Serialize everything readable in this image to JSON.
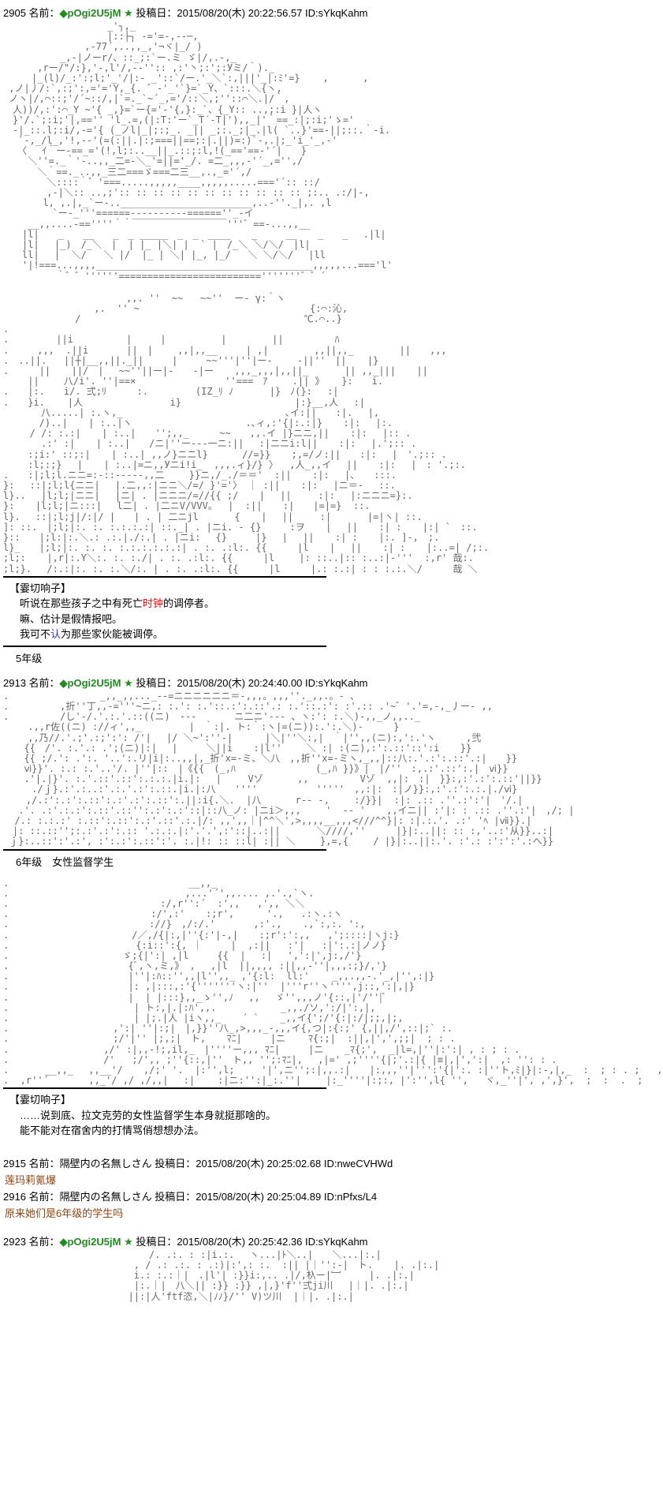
{
  "posts": [
    {
      "num": "2905",
      "nameLabel": "名前：",
      "trip": "◆pOgi2U5jM",
      "star": "★",
      "dateLabel": "投稿日：",
      "date": "2015/08/20(木) 20:22:56.57",
      "id": "ID:sYkqKahm"
    },
    {
      "num": "2913",
      "nameLabel": "名前：",
      "trip": "◆pOgi2U5jM",
      "star": "★",
      "dateLabel": "投稿日：",
      "date": "2015/08/20(木) 20:24:40.00",
      "id": "ID:sYkqKahm"
    },
    {
      "num": "2923",
      "nameLabel": "名前：",
      "trip": "◆pOgi2U5jM",
      "star": "★",
      "dateLabel": "投稿日：",
      "date": "2015/08/20(木) 20:25:42.36",
      "id": "ID:sYkqKahm"
    }
  ],
  "replies": [
    {
      "num": "2915",
      "nameLabel": "名前：",
      "name": "隔壁内の名無しさん",
      "dateLabel": "投稿日：",
      "date": "2015/08/20(木) 20:25:02.68",
      "id": "ID:nweCVHWd",
      "body": "莲玛莉氪爆"
    },
    {
      "num": "2916",
      "nameLabel": "名前：",
      "name": "隔壁内の名無しさん",
      "dateLabel": "投稿日：",
      "date": "2015/08/20(木) 20:25:04.89",
      "id": "ID:nPfxs/L4",
      "body": "原来她们是6年级的学生吗"
    }
  ],
  "dialogue1": {
    "speaker": "【霎切响子】",
    "line1a": "听说在那些孩子之中有死亡",
    "line1red": "时钟",
    "line1b": "的调停者。",
    "line2": "嘛、估计是假情报吧。",
    "line3a": "我可不",
    "line3blue": "认",
    "line3b": "为那些家伙能被调停。"
  },
  "caption1": "5年级",
  "caption2": "6年级　女性监督学生",
  "dialogue2": {
    "speaker": "【霎切响子】",
    "line1": "……说到底、拉文克劳的女性监督学生本身就挺那啥的。",
    "line2": "能不能对在宿舍内的打情骂俏想想办法。"
  },
  "aa1": "　　　　　　　　　　　_'┐,_\n　　　　　　　　　　　|::├┐ -='=-,--─,\n　　　　　　　　 ,-77´,..,,_,'¬ヾ|_/ )\n　　　　　　_,-|ノーr/、::_;:`ー.ミ ゞ|/,.-,_\n　　　 ,rー/\"/:},'-,l'/,--'':: ,:'丶;:';:Уミ/｀)._\n　　　|_(l)/_:':;l;'_'/|:- _'::`/ー.'_＼`:,|||'_|:ﾐ'=}    ,      ,\n ,ノ|丿/:`,:;':,='='Y,_{. ゛-'_'`}=`_Y、`:::.＼{ヽ,\n ノヽ|/,⌒::;'/´~::/,|`=._`~´_,='/::＼,;''::⌒＼.|/｀,\n　人))/,:':⌒_Y ~'{ _,}=`ー{='-'{,}:_`、{_Y:: ..,;:i }|人ヽ\n　}'/.`;:i;'|,=='' 'l_.=,(|:T:'ー`_T´-T|'),,_|'｀==_:|;:i;'ゝ='\n　-|_::.l;:i/,-='{ (_ノl|_|;:;_. _|| _;:._;|_.|l( `..}'==-||;::.｀-i.\n　 `-,_/l_,'!,--'(=(:||.|:;===||==;:|.||)=:)`-,.|;_'i_'_,-'\n　　〈　 ｲ｀ー-==_='(!,l;:..__||_.::;:l,!(_=='==-'´|　　}\n　　 ＼''=._｀'-..,,_二=-＼_'=||='_/. =二_,,,-'´_,='',/\n　　　 ＼｀==._..,,_三二===ゞ===二三__,.,_='´,/\n　　　　 ＼::::｀゛'===.....,,,,,____,,,,,.....==='´:: ::/\n　　　　 ,-|＼:: ..,;':: :: :: :: :: :: :: :: :: :: :: ;:.. .:/|-,\n　　 　 l, ,.|,_`ー-.._______________________,..-''._|,. ,l\n　　　 　 `ー-_'''======----------======''_-イ\n　　 __,,....-==''''｀｀￣￣￣￣￣￣￣￣￣￣'''゛==-...,,__\n　　|l|　　_　　__　　_　_ _____　_　_　____ 　 _　　　__ 　 _　　_ 　.|l|\n　　|l|　 |_)　/_＼　|  | |_ |＼| |  ` |　/_＼ ＼/＼/　|l|\n　　ll|　 |  ＼/   ＼ |/  |_ | ＼| |_, |_/   ＼ ＼/＼/ 　|ll\n　　'|!===...,,,,______________________________________,,,,,...==='l'\n　　　　　 ｀゛゛''''''========================='''''''゛゛´",
  "aa2": "　　　　　　　　　　　　　,,. ''  ~~   ~~''  ー- γ:｀ヽ\n　　　　　　　　　 ,.  '' ~　　　　　　　　　　　　　　　　　　{:⌒:沁,\n　　　　　　　 /　　　　　　　　　　　　　　　　　　　　　　　 ℃.⌒..}\n.\n.　　　　　||i　　　　　 |　　　|　　 　 　 | 　 　 　|| 　 　 　 ﾊ\n.　　　,,,  .||i　　　　||　|　　 ,,|,,__　　　| ,| 　 　 　,,||,,_　 　 　 ||　　,,,\n.　..||.   ||┼|__,,||._||　　　|　　　~~'''|''|ー-　　 -||''　|| 　 |}\n.　　  || 　 ||/　|　 ~~''||ー|-　　-|ー 　 ,,,_,,,|,,||_ 　 　 || ,,_||| 　 ||\n　　 ||　　 八/i'. ''|==×　　　　　　    　''===　ｱ　　 .|| 》   }:　　i.\n.　　|:.　　i/. 弍;ﾘ　　  :.　　　　　(IZ_ﾘ ﾉ   　　|}　ﾉ(}:　 :|\n.　　}i.    |人　　　　　　　　  i}　　　　　　　　　　　　|:}__,人　 :|\n　　　　八.....| :.ヽ,_　　　　　　　 　 　 　 　 　 　 ､イ:||　　:|.　 |,\n　　   /)..| 　 | :..|ヽ　　　　　　　　　　　　.､ィ,:'{|:.:|} 　 :|: 　|:.\n　   / /: :.:| 　 | :..|　　'';,,_　　  ~~　　,,.イ |}ニニ,|| 　 :|: 　|:: .\n　　　　.:' :| 　 | :..|　　/ニ|''ー---一ニ:||　 :|ニニi:l|| 　 :|: 　|.';:: .\n　　 :;i:' ::;:| 　 | :..| ,,ノ}ニニl}　　　 //=}} 　 ;,=/ノ:||　　:|: 　|　'.;:: .\n　　 :l;:;} 　| 　 | :..|=ニ,,Уニi!i_  ,,,.ィ}/} 〉  ,人_,,イ 　|| 　 :|: 　|　: '.;:.\n.　　:|;l;l.ニニ=:-::-----,,二　　 }}ニ,/_./＝＝'  :|| 　 :|: 　|、　　:::.\n}:　 ::|;l;l{ニニ|　 |.二,,:|ニニ＼/=/ }'='〉 ｜ :|| 　 :|: 　|ニ＝-　 ::.\nl}..　 |l;l;|ニニ|　 |ニ| . |ニニニ/=//{{ ;/　  | 　||  　 :|: 　|:ニニニ=}:.\n}: 　 |l;l;|ニ:::|　 l二| . |二ニV/VVV。　 |  :|| 　 :|　　|=|=}  ::.\nl}.　 ::|;l;j|/:|/ |　　| . | 二ニjl　　   {　  | 　||  　 :|　 　  |=|ヽ| ::.\n]: ::.　|;l;|:. :. :.:.:.:| ::._| . |ニi. - {}　　　:ヲ 　 |　 || 　 :| : 　 |:| `　::.\n}::　　|;l:|:.＼.: .:.|./:.| . |ニi: 　{}　　　|}　 |　 || 　 :| : 　 |:. ]-,　;.\nl}_　　|;l;|:. :. :. :.:.:.:.:.:| . :. .:l:. {{　 　 |l 　 |　 || 　 :| : 　 |:..=| /;:.\n;l;: 　 |,r|:.Y＼:. :. :./| . :. .:l:. {{　 　 |l　 　|: ::..|:: :..:|-'''  :,r' 哉:.\n;l;}.　 /:.:|:. :. :.＼/:. | . :. .:l:. {{　 　 |l 　 　|.: :.:| : : :.:.＼/　 　 哉 ＼",
  "aa3": ".　　　　　　　　　 _,,_,,..._-‐=ニニニニニニ＝-,,,。,,,''._,,.。- 、\n. 　 　 　 ,折''丁,,-='''~ニ,: :.': :.'::.:':.::'.: :.'::.:': :'.:: .'~゛'.'=,-,_丿ー- ,,\n. 　 　 　 /し'-/.'.:.'.::((ニ)　--‐　　　　ニ二ニ'--- 、ヽ:': :.＼)-,,_ノ,,.._\n　　 .,,r佐((ニ) ://ィ',,_　　　　　|　｀:|. ト:｀:ヽ|=(ニ)):.':.＼)-　 　 }\n　　 ,,乃//.'.;'.:;':': /'| 　|/ ＼~':''-|  　  |＼|''＼:,|　｀|'',,(ニ):,':.'ヽ　　  ,弐\n 　 {{　/'. :.'.: .';(ニ)|:| 　|　　　＼||i　  :|l''　 　＼ :| :(ニ),:':.::'::':i 　 }}\n 　 {{ ;/.': .':. '..':.リ|i|:..,,|,_折'x=-ミ、＼八　,,折''x=-ミヽ,_,,|::八:.'.:':.::'.:|　　}}\n 　 ⅵ}}'. :.: :.'..'/. |''|::　|《{{　(_,ﾊ              (_,ﾊ }}》|　|/''　:,.:'.::':.|　ⅵ}}\n 　 .'|.|}'. :.'.::'.::':.:.:.|i.|: 　|  　 Vゾ      ,,         Vゾ  ,,|:　:|　}}:,:'.:':.::'||}}\n     ./ｊ}.:'.:..:'.:.'.:':.::.|i.|:八　　''''　　　　　  '''''　,,:|:　:|ノ}}:,:'.:':.:.|./ⅵ}\n    ,/.:':.:':.::':.:'.:':.::':.||:i{.＼.  |八　　　 r-- -,　　 :/}}|  :|: .:: .''.:':'|　'/.|\n　 .'. .:'.:.:':.::'.::'':.:':.:'::|::八_ノ: |ニi＞,,,　　 '  -- '  　,,イニ|| :'|: : .:: .''.:'|　,/; |\n  /.: :.:.:' :.::':.::':.:'.::'.:.|/: ,,',,｜|^^＼',>,,,,__,,,<///^^}|: :|.:.'. .:' 'ﾍ |ⅶ}}.|\n　|: ::.::'';:.:'.:':.:: '.:.:.|:'.'.',:'::|..:|| 　 　 ＼////,'' 　　 |}|:..||: :: :,'..:'从}}..:|\n ｊ}:..::':'.:', :':.:':.::':'. :.|!: :: ::l| :|| ＼　 　},=,{ 　　/ |}|:..||:.'. :'.: :':':'.:へ}}",
  "aa4": ".　　　　　　　　　　　　　　　　　　　__,,_\n.　　　　　　　　　 　 　 　 　 　 　,...'´',,.... ,.'.,`ヽ.\n.　　　　　　　　　　　　　　　　:/,r'':´  :',,   ,',, ＼＼\n.　　　　　　　　　　　　　　　:/',:'　  :;r',   　 '.,   .:ヽ.:ヽ\n.　 　　　 　 　 　 　 　 　 ://}　,/:/.' 　    ,:'., 　 .,`:,:. ':,\n.　　　　　　　　　　　　　/／,/{|:,|''{:'|-,|　  :;r':':,,   ,';::::|ヽj:}\n. 　 　 　 　 　 　 　 　 {:i::':{, ｜　　　|  ,:||   :'|   :|':.:|ノノ}\n.　　　　　　　　　　　　ゞ;{|':| ,|l　　　{{  |　 :|　 ',':|',j:,/'}\n.　　　　　　　　　　　　 {ﾞ,ヽ,ミ,》 ,　 ,|l  ||,,,, :||,,-''|,,,:;}/,'}\n.　　　　　　　　　　　　 |''|:ﾊ::'',,|l'',,_ ,'{:l:  ll:'    _,,.,,-.'_,|'',:|}\n.　　　　　　　　　　　　 |: ,|:::,:'{'''''''ヽ:|''  |'''r''ヽ'''',j::,':|,|}\n.　　　　　　　　　　　　 |  | |:::},,_ゝ'',ﾉ　 ,,　 ゞ'',,,ノ'{::,|'/''|ﾞ\n.　　 　　 　 　 　 　 　 | ト:,|.|:ﾊ',,.　　　　　   _,,./ソ,':/|':,|,\n.　　 　　 　 　 　 　 　 | |;.|人 |iヽ,,_　  ´ ` 　 _,,イ{';/'{:|:/|;;,|;,\n.　　　　　　　　　　　,':| ''|:;|　|,}}''八_,>,,,_-,,,イ{,つ|:{:;' {,||,/',::|;` :.\n.　　　　　　　　　　　;/'|'' |;,;|　ト, 　 ﾏﾆ|　　　|ニ    ﾏ{:;|  :||,|',',;;|  ; : .\n.　　　　　　　　　　,/' :|,,-!;,il,_　|''''ー,,, ﾏﾆ|　　　|ニ　  _ﾏ{;',  _|l=,|''|:':| , : ; : .\n.　　　　　　　　　　/'   ;/',, ;''{::,|''　ト,, '';:ﾏﾆ|, 　,|=' ,;''''{|;'.:|{ |≡|,|',':|  ,: '': : .\n.　　   __,,_　 ,,__'/　  ,/;' '.  |:'',l;  　 '|',ニ'';:|,,.:|　　|:,,,''|''':'{|':. :|''ト,ﾐ|}|:-,|,_  :  ; : . ;   ,\n.  ,r''´       ,,_'/ ,/ ,/,,|　 :|    :|ニ:'':|_:.''|　　 |:_''''|:;:, |':'',l{ '',   ヾ,_''|', ,',}',  ;  :  .  ;",
  "aa5": "　　 　 　 　 　 　 　 　 　 /. .:. : :|i.:.　 ヽ...|ﾄ＼..|　　＼...|:.|\n　　 　 　 　 　 　 　 　 , / .: .:. : .:)|:',: :.  :|| |｜'':-|　ト.  　|. .|:.|\n　　 　 　 　 　 　 　 　 i.: :.:｜|　.|l'| :}}i:,.. .|/,杁ー|﹈　　　|. .|:.|\n　　 　 　 　 　 　 　 　 |:.｜|　八＼|| :}} :}} ,|,}'f''弍ji川　 |｜|. .|:.|\n　　　 　 　 　 　 　 　 ||:|人'ftf恣,＼|ﾉﾉ}/'' V)ツ川  |｜|. .|:.|"
}
